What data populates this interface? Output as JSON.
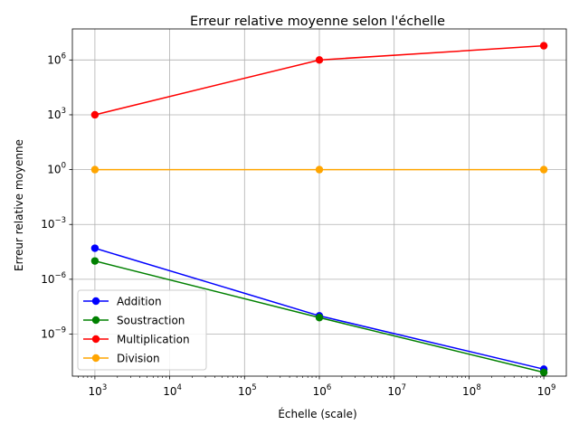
{
  "chart_data": {
    "type": "line",
    "title": "Erreur relative moyenne selon l'échelle",
    "xlabel": "Échelle (scale)",
    "ylabel": "Erreur relative moyenne",
    "xscale": "log",
    "yscale": "log",
    "xlim": [
      500,
      2000000000
    ],
    "ylim": [
      5e-12,
      50000000.0
    ],
    "x": [
      1000,
      1000000,
      1000000000
    ],
    "xticks": [
      {
        "base": "10",
        "exp": "3",
        "value": 1000
      },
      {
        "base": "10",
        "exp": "4",
        "value": 10000
      },
      {
        "base": "10",
        "exp": "5",
        "value": 100000
      },
      {
        "base": "10",
        "exp": "6",
        "value": 1000000
      },
      {
        "base": "10",
        "exp": "7",
        "value": 10000000
      },
      {
        "base": "10",
        "exp": "8",
        "value": 100000000
      },
      {
        "base": "10",
        "exp": "9",
        "value": 1000000000
      }
    ],
    "yticks": [
      {
        "base": "10",
        "exp": "−9",
        "value": 1e-09
      },
      {
        "base": "10",
        "exp": "−6",
        "value": 1e-06
      },
      {
        "base": "10",
        "exp": "−3",
        "value": 0.001
      },
      {
        "base": "10",
        "exp": "0",
        "value": 1
      },
      {
        "base": "10",
        "exp": "3",
        "value": 1000
      },
      {
        "base": "10",
        "exp": "6",
        "value": 1000000
      }
    ],
    "grid": true,
    "legend_position": "lower-left",
    "series": [
      {
        "name": "Addition",
        "color": "#0000ff",
        "values": [
          5e-05,
          1e-08,
          1.2e-11
        ]
      },
      {
        "name": "Soustraction",
        "color": "#008000",
        "values": [
          1e-05,
          8e-09,
          8e-12
        ]
      },
      {
        "name": "Multiplication",
        "color": "#ff0000",
        "values": [
          1000,
          1000000,
          6000000
        ]
      },
      {
        "name": "Division",
        "color": "#ffa500",
        "values": [
          1,
          1,
          1
        ]
      }
    ]
  }
}
